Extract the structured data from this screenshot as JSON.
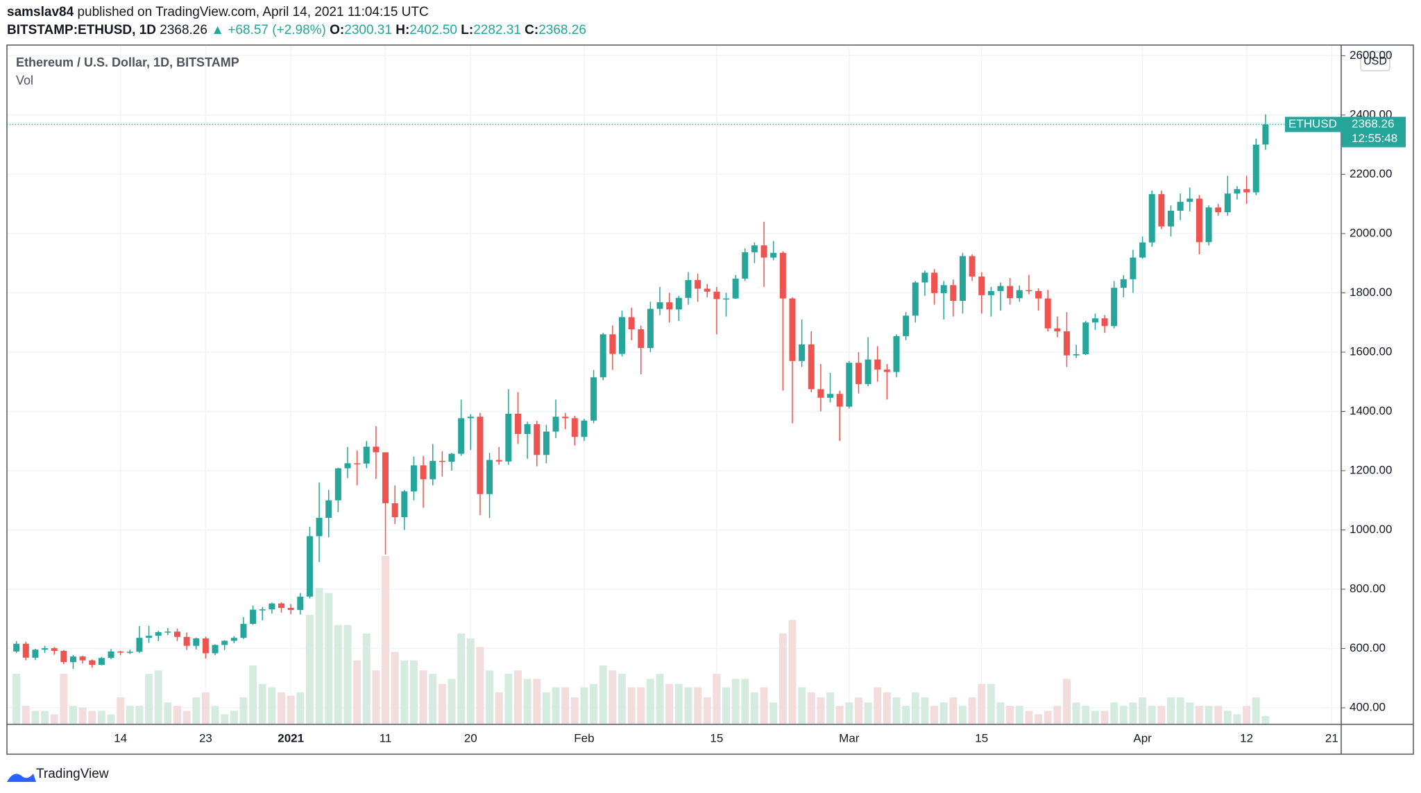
{
  "header": {
    "author": "samslav84",
    "published": "published on TradingView.com, April 14, 2021 11:04:15 UTC",
    "symbol": "BITSTAMP:ETHUSD, 1D",
    "last": "2368.26",
    "change": "▲ +68.57 (+2.98%)",
    "o_label": "O:",
    "o": "2300.31",
    "h_label": "H:",
    "h": "2402.50",
    "l_label": "L:",
    "l": "2282.31",
    "c_label": "C:",
    "c": "2368.26"
  },
  "footer": "TradingView",
  "chart_data": {
    "type": "candlestick",
    "legend": [
      "Ethereum / U.S. Dollar, 1D, BITSTAMP",
      "Vol"
    ],
    "currency": "USD",
    "price_label": {
      "name": "ETHUSD",
      "value": "2368.26",
      "countdown": "12:55:48"
    },
    "up_color": "#26a69a",
    "down_color": "#ef5350",
    "up_volume_color": "#d5ebe0",
    "down_volume_color": "#f2dcdc",
    "grid": true,
    "xlim": [
      "2020-12-02",
      "2021-04-22"
    ],
    "xticks": [
      {
        "value": "2020-12-14",
        "label": "14"
      },
      {
        "value": "2020-12-23",
        "label": "23"
      },
      {
        "value": "2021-01-01",
        "label": "2021"
      },
      {
        "value": "2021-01-11",
        "label": "11"
      },
      {
        "value": "2021-01-20",
        "label": "20"
      },
      {
        "value": "2021-02-01",
        "label": "Feb"
      },
      {
        "value": "2021-02-15",
        "label": "15"
      },
      {
        "value": "2021-03-01",
        "label": "Mar"
      },
      {
        "value": "2021-03-15",
        "label": "15"
      },
      {
        "value": "2021-04-01",
        "label": "Apr"
      },
      {
        "value": "2021-04-12",
        "label": "12"
      },
      {
        "value": "2021-04-21",
        "label": "21"
      }
    ],
    "ylim": [
      344,
      2636
    ],
    "yticks": [
      {
        "value": 400,
        "label": "400.00"
      },
      {
        "value": 600,
        "label": "600.00"
      },
      {
        "value": 800,
        "label": "800.00"
      },
      {
        "value": 1000,
        "label": "1000.00"
      },
      {
        "value": 1200,
        "label": "1200.00"
      },
      {
        "value": 1400,
        "label": "1400.00"
      },
      {
        "value": 1600,
        "label": "1600.00"
      },
      {
        "value": 1800,
        "label": "1800.00"
      },
      {
        "value": 2000,
        "label": "2000.00"
      },
      {
        "value": 2200,
        "label": "2200.00"
      },
      {
        "value": 2400,
        "label": "2400.00"
      },
      {
        "value": 2600,
        "label": "2600.00"
      }
    ],
    "vlim": [
      0,
      100
    ],
    "x": [
      "2020-12-03",
      "2020-12-04",
      "2020-12-05",
      "2020-12-06",
      "2020-12-07",
      "2020-12-08",
      "2020-12-09",
      "2020-12-10",
      "2020-12-11",
      "2020-12-12",
      "2020-12-13",
      "2020-12-14",
      "2020-12-15",
      "2020-12-16",
      "2020-12-17",
      "2020-12-18",
      "2020-12-19",
      "2020-12-20",
      "2020-12-21",
      "2020-12-22",
      "2020-12-23",
      "2020-12-24",
      "2020-12-25",
      "2020-12-26",
      "2020-12-27",
      "2020-12-28",
      "2020-12-29",
      "2020-12-30",
      "2020-12-31",
      "2021-01-01",
      "2021-01-02",
      "2021-01-03",
      "2021-01-04",
      "2021-01-05",
      "2021-01-06",
      "2021-01-07",
      "2021-01-08",
      "2021-01-09",
      "2021-01-10",
      "2021-01-11",
      "2021-01-12",
      "2021-01-13",
      "2021-01-14",
      "2021-01-15",
      "2021-01-16",
      "2021-01-17",
      "2021-01-18",
      "2021-01-19",
      "2021-01-20",
      "2021-01-21",
      "2021-01-22",
      "2021-01-23",
      "2021-01-24",
      "2021-01-25",
      "2021-01-26",
      "2021-01-27",
      "2021-01-28",
      "2021-01-29",
      "2021-01-30",
      "2021-01-31",
      "2021-02-01",
      "2021-02-02",
      "2021-02-03",
      "2021-02-04",
      "2021-02-05",
      "2021-02-06",
      "2021-02-07",
      "2021-02-08",
      "2021-02-09",
      "2021-02-10",
      "2021-02-11",
      "2021-02-12",
      "2021-02-13",
      "2021-02-14",
      "2021-02-15",
      "2021-02-16",
      "2021-02-17",
      "2021-02-18",
      "2021-02-19",
      "2021-02-20",
      "2021-02-21",
      "2021-02-22",
      "2021-02-23",
      "2021-02-24",
      "2021-02-25",
      "2021-02-26",
      "2021-02-27",
      "2021-02-28",
      "2021-03-01",
      "2021-03-02",
      "2021-03-03",
      "2021-03-04",
      "2021-03-05",
      "2021-03-06",
      "2021-03-07",
      "2021-03-08",
      "2021-03-09",
      "2021-03-10",
      "2021-03-11",
      "2021-03-12",
      "2021-03-13",
      "2021-03-14",
      "2021-03-15",
      "2021-03-16",
      "2021-03-17",
      "2021-03-18",
      "2021-03-19",
      "2021-03-20",
      "2021-03-21",
      "2021-03-22",
      "2021-03-23",
      "2021-03-24",
      "2021-03-25",
      "2021-03-26",
      "2021-03-27",
      "2021-03-28",
      "2021-03-29",
      "2021-03-30",
      "2021-03-31",
      "2021-04-01",
      "2021-04-02",
      "2021-04-03",
      "2021-04-04",
      "2021-04-05",
      "2021-04-06",
      "2021-04-07",
      "2021-04-08",
      "2021-04-09",
      "2021-04-10",
      "2021-04-11",
      "2021-04-12",
      "2021-04-13",
      "2021-04-14"
    ],
    "open": [
      590,
      616,
      569,
      596,
      601,
      592,
      554,
      573,
      560,
      545,
      568,
      590,
      586,
      589,
      636,
      643,
      655,
      657,
      639,
      609,
      634,
      584,
      612,
      626,
      636,
      683,
      731,
      732,
      752,
      737,
      730,
      775,
      979,
      1041,
      1100,
      1208,
      1225,
      1224,
      1281,
      1262,
      1090,
      1043,
      1130,
      1218,
      1171,
      1233,
      1230,
      1257,
      1377,
      1382,
      1121,
      1236,
      1231,
      1392,
      1324,
      1357,
      1253,
      1332,
      1382,
      1377,
      1314,
      1369,
      1515,
      1660,
      1594,
      1718,
      1677,
      1614,
      1746,
      1768,
      1744,
      1783,
      1843,
      1814,
      1804,
      1779,
      1781,
      1848,
      1937,
      1960,
      1919,
      1935,
      1781,
      1570,
      1626,
      1475,
      1446,
      1459,
      1416,
      1564,
      1492,
      1575,
      1541,
      1533,
      1654,
      1723,
      1835,
      1868,
      1799,
      1826,
      1773,
      1924,
      1855,
      1792,
      1806,
      1823,
      1782,
      1809,
      1806,
      1781,
      1680,
      1670,
      1589,
      1593,
      1700,
      1714,
      1688,
      1817,
      1846,
      1919,
      1970,
      2133,
      2024,
      2077,
      2107,
      2118,
      1971,
      2088,
      2072,
      2135,
      2150,
      2139,
      2300.31
    ],
    "high": [
      625,
      623,
      599,
      609,
      605,
      595,
      578,
      576,
      563,
      572,
      598,
      592,
      596,
      676,
      676,
      660,
      669,
      667,
      654,
      637,
      640,
      614,
      628,
      642,
      706,
      745,
      740,
      755,
      756,
      750,
      787,
      1011,
      1160,
      1135,
      1210,
      1280,
      1268,
      1300,
      1350,
      1262,
      1150,
      1135,
      1248,
      1250,
      1290,
      1265,
      1260,
      1440,
      1390,
      1395,
      1260,
      1280,
      1475,
      1465,
      1365,
      1368,
      1355,
      1440,
      1395,
      1385,
      1375,
      1540,
      1665,
      1690,
      1740,
      1750,
      1690,
      1770,
      1820,
      1800,
      1790,
      1870,
      1865,
      1830,
      1820,
      1800,
      1860,
      1950,
      1970,
      2040,
      1975,
      1940,
      1785,
      1710,
      1670,
      1560,
      1530,
      1470,
      1570,
      1600,
      1650,
      1620,
      1560,
      1660,
      1735,
      1840,
      1875,
      1880,
      1840,
      1845,
      1935,
      1930,
      1870,
      1820,
      1835,
      1850,
      1825,
      1860,
      1815,
      1810,
      1720,
      1735,
      1625,
      1705,
      1730,
      1725,
      1840,
      1860,
      1945,
      1990,
      2145,
      2145,
      2095,
      2135,
      2155,
      2130,
      2095,
      2100,
      2195,
      2160,
      2195,
      2320,
      2402.5
    ],
    "low": [
      585,
      560,
      561,
      585,
      579,
      547,
      531,
      549,
      535,
      543,
      564,
      578,
      581,
      585,
      619,
      625,
      645,
      625,
      595,
      597,
      566,
      578,
      595,
      618,
      632,
      680,
      695,
      718,
      721,
      716,
      715,
      769,
      892,
      975,
      1060,
      1175,
      1150,
      1208,
      1172,
      917,
      1020,
      1000,
      1100,
      1075,
      1150,
      1180,
      1200,
      1250,
      1270,
      1050,
      1040,
      1220,
      1220,
      1290,
      1240,
      1215,
      1225,
      1310,
      1340,
      1285,
      1300,
      1360,
      1505,
      1540,
      1585,
      1640,
      1525,
      1600,
      1725,
      1700,
      1705,
      1760,
      1770,
      1785,
      1660,
      1720,
      1780,
      1840,
      1900,
      1820,
      1910,
      1470,
      1360,
      1550,
      1465,
      1400,
      1430,
      1300,
      1410,
      1460,
      1485,
      1500,
      1440,
      1515,
      1640,
      1700,
      1790,
      1760,
      1710,
      1720,
      1730,
      1840,
      1730,
      1720,
      1740,
      1760,
      1770,
      1795,
      1740,
      1670,
      1650,
      1550,
      1580,
      1590,
      1675,
      1665,
      1680,
      1785,
      1800,
      1915,
      1955,
      2015,
      1990,
      2045,
      2075,
      1930,
      1960,
      2060,
      2060,
      2115,
      2100,
      2130,
      2282.31
    ],
    "close": [
      616,
      569,
      596,
      601,
      592,
      554,
      573,
      560,
      545,
      568,
      590,
      586,
      589,
      636,
      643,
      655,
      657,
      639,
      609,
      634,
      584,
      612,
      626,
      636,
      683,
      731,
      732,
      752,
      737,
      730,
      775,
      979,
      1041,
      1100,
      1208,
      1225,
      1224,
      1281,
      1262,
      1090,
      1043,
      1130,
      1218,
      1171,
      1233,
      1230,
      1257,
      1377,
      1382,
      1121,
      1236,
      1231,
      1392,
      1324,
      1357,
      1253,
      1332,
      1382,
      1377,
      1314,
      1369,
      1515,
      1660,
      1594,
      1718,
      1677,
      1614,
      1746,
      1768,
      1744,
      1783,
      1843,
      1814,
      1804,
      1779,
      1781,
      1848,
      1937,
      1960,
      1919,
      1935,
      1781,
      1570,
      1626,
      1475,
      1446,
      1459,
      1416,
      1564,
      1492,
      1575,
      1541,
      1533,
      1654,
      1723,
      1835,
      1868,
      1799,
      1826,
      1773,
      1924,
      1855,
      1792,
      1806,
      1823,
      1782,
      1809,
      1806,
      1781,
      1680,
      1670,
      1589,
      1593,
      1700,
      1714,
      1688,
      1817,
      1846,
      1919,
      1970,
      2133,
      2024,
      2077,
      2107,
      2118,
      1971,
      2088,
      2072,
      2135,
      2150,
      2139,
      2300,
      2368.26
    ],
    "volume": [
      30,
      11,
      8,
      8,
      6,
      30,
      11,
      10,
      8,
      8,
      6,
      16,
      11,
      11,
      30,
      32,
      13,
      11,
      8,
      16,
      19,
      11,
      6,
      8,
      16,
      35,
      24,
      22,
      19,
      17,
      19,
      65,
      81,
      78,
      59,
      59,
      38,
      54,
      32,
      100,
      43,
      38,
      38,
      32,
      30,
      24,
      27,
      54,
      51,
      46,
      32,
      19,
      30,
      32,
      27,
      27,
      19,
      22,
      22,
      16,
      22,
      24,
      35,
      32,
      30,
      22,
      22,
      27,
      30,
      24,
      24,
      22,
      22,
      16,
      30,
      22,
      27,
      27,
      19,
      22,
      13,
      54,
      62,
      22,
      19,
      16,
      19,
      11,
      13,
      16,
      13,
      22,
      19,
      16,
      11,
      19,
      16,
      11,
      13,
      16,
      11,
      16,
      24,
      24,
      13,
      11,
      11,
      8,
      6,
      8,
      11,
      27,
      13,
      11,
      8,
      8,
      13,
      11,
      13,
      16,
      11,
      11,
      16,
      16,
      13,
      11,
      11,
      11,
      8,
      6,
      11,
      16,
      5
    ]
  }
}
